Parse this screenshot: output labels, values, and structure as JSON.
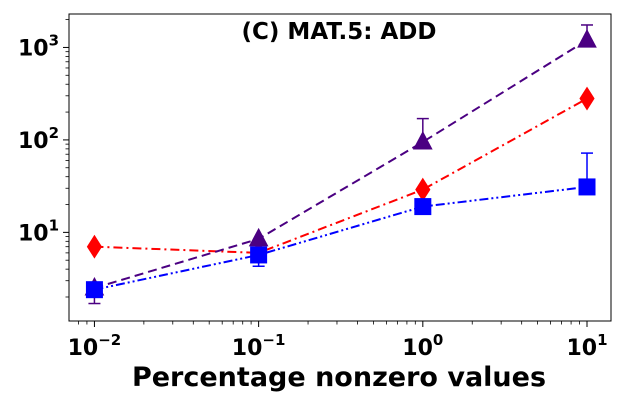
{
  "chart_data": {
    "type": "line",
    "title": "(C) MAT.5: ADD",
    "xlabel": "Percentage nonzero values",
    "ylabel": "",
    "xscale": "log",
    "yscale": "log",
    "xlim": [
      0.007,
      14
    ],
    "ylim": [
      1.1,
      2300
    ],
    "x": [
      0.01,
      0.1,
      1,
      10
    ],
    "xticks": [
      {
        "base": "10",
        "exp": "−2",
        "value": 0.01
      },
      {
        "base": "10",
        "exp": "−1",
        "value": 0.1
      },
      {
        "base": "10",
        "exp": "0",
        "value": 1
      },
      {
        "base": "10",
        "exp": "1",
        "value": 10
      }
    ],
    "yticks": [
      {
        "base": "10",
        "exp": "1",
        "value": 10
      },
      {
        "base": "10",
        "exp": "2",
        "value": 100
      },
      {
        "base": "10",
        "exp": "3",
        "value": 1000
      }
    ],
    "series": [
      {
        "color": "#ff0000",
        "linestyle": "dashdot",
        "marker": "diamond",
        "values": [
          7.0,
          6.0,
          29,
          280
        ],
        "err_low": [
          null,
          null,
          null,
          null
        ],
        "err_high": [
          null,
          null,
          null,
          null
        ]
      },
      {
        "color": "#4b0082",
        "linestyle": "dashed",
        "marker": "triangle",
        "values": [
          2.5,
          8.5,
          95,
          1200
        ],
        "err_low": [
          1.7,
          null,
          null,
          null
        ],
        "err_high": [
          null,
          null,
          170,
          1750
        ]
      },
      {
        "color": "#0000ff",
        "linestyle": "dashdotdot",
        "marker": "square",
        "values": [
          2.4,
          5.7,
          19,
          31
        ],
        "err_low": [
          null,
          4.3,
          null,
          null
        ],
        "err_high": [
          null,
          null,
          null,
          72
        ]
      }
    ],
    "grid": false,
    "legend": "none"
  }
}
